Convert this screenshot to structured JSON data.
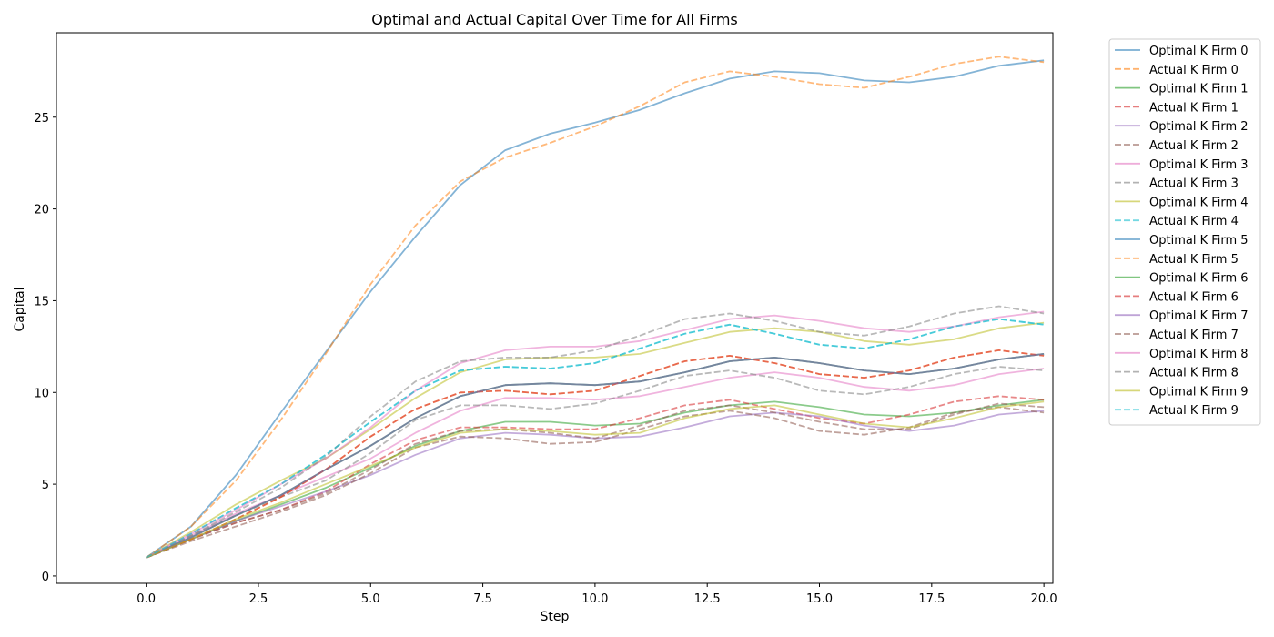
{
  "chart_data": {
    "type": "line",
    "title": "Optimal and Actual Capital Over Time for All Firms",
    "xlabel": "Step",
    "ylabel": "Capital",
    "xlim": [
      -2,
      20.2
    ],
    "ylim": [
      -0.4,
      29.6
    ],
    "xticks": [
      0,
      2.5,
      5,
      7.5,
      10,
      12.5,
      15,
      17.5,
      20
    ],
    "yticks": [
      0,
      5,
      10,
      15,
      20,
      25
    ],
    "xtick_labels": [
      "0.0",
      "2.5",
      "5.0",
      "7.5",
      "10.0",
      "12.5",
      "15.0",
      "17.5",
      "20.0"
    ],
    "ytick_labels": [
      "0",
      "5",
      "10",
      "15",
      "20",
      "25"
    ],
    "grid": false,
    "legend_position": "outside-right",
    "x": [
      0,
      1,
      2,
      3,
      4,
      5,
      6,
      7,
      8,
      9,
      10,
      11,
      12,
      13,
      14,
      15,
      16,
      17,
      18,
      19,
      20
    ],
    "series": [
      {
        "name": "Optimal K Firm 0",
        "color": "#1f77b4",
        "dash": false,
        "values": [
          1.0,
          2.7,
          5.5,
          8.9,
          12.2,
          15.5,
          18.5,
          21.3,
          23.2,
          24.1,
          24.7,
          25.4,
          26.3,
          27.1,
          27.5,
          27.4,
          27.0,
          26.9,
          27.2,
          27.8,
          28.1
        ]
      },
      {
        "name": "Actual K Firm 0",
        "color": "#ff7f0e",
        "dash": true,
        "values": [
          1.0,
          2.7,
          5.2,
          8.5,
          12.1,
          15.9,
          19.1,
          21.5,
          22.8,
          23.6,
          24.5,
          25.6,
          26.9,
          27.5,
          27.2,
          26.8,
          26.6,
          27.2,
          27.9,
          28.3,
          28.0
        ]
      },
      {
        "name": "Optimal K Firm 1",
        "color": "#2ca02c",
        "dash": false,
        "values": [
          1.0,
          2.0,
          3.0,
          3.9,
          4.8,
          5.9,
          7.1,
          7.9,
          8.4,
          8.4,
          8.2,
          8.3,
          8.9,
          9.3,
          9.5,
          9.2,
          8.8,
          8.7,
          8.9,
          9.3,
          9.6
        ]
      },
      {
        "name": "Actual K Firm 1",
        "color": "#d62728",
        "dash": true,
        "values": [
          1.0,
          2.0,
          2.9,
          3.6,
          4.6,
          6.1,
          7.4,
          8.1,
          8.1,
          8.0,
          8.0,
          8.6,
          9.3,
          9.6,
          9.1,
          8.6,
          8.3,
          8.8,
          9.5,
          9.8,
          9.6
        ]
      },
      {
        "name": "Optimal K Firm 2",
        "color": "#9467bd",
        "dash": false,
        "values": [
          1.0,
          2.0,
          3.0,
          3.8,
          4.6,
          5.5,
          6.6,
          7.5,
          7.8,
          7.7,
          7.5,
          7.6,
          8.1,
          8.7,
          8.9,
          8.7,
          8.2,
          7.9,
          8.2,
          8.8,
          9.0
        ]
      },
      {
        "name": "Actual K Firm 2",
        "color": "#8c564b",
        "dash": true,
        "values": [
          1.0,
          2.0,
          2.9,
          3.6,
          4.5,
          5.8,
          7.2,
          7.9,
          8.0,
          7.8,
          7.5,
          8.2,
          9.0,
          9.3,
          8.9,
          8.4,
          8.0,
          8.0,
          8.8,
          9.4,
          9.2
        ]
      },
      {
        "name": "Optimal K Firm 3",
        "color": "#e377c2",
        "dash": false,
        "values": [
          1.0,
          2.2,
          3.4,
          4.4,
          5.4,
          6.4,
          7.8,
          9.0,
          9.7,
          9.7,
          9.6,
          9.8,
          10.3,
          10.8,
          11.1,
          10.8,
          10.3,
          10.1,
          10.4,
          11.0,
          11.3
        ]
      },
      {
        "name": "Actual K Firm 3",
        "color": "#7f7f7f",
        "dash": true,
        "values": [
          1.0,
          2.2,
          3.3,
          4.3,
          5.2,
          6.7,
          8.5,
          9.3,
          9.3,
          9.1,
          9.4,
          10.1,
          10.9,
          11.2,
          10.8,
          10.1,
          9.9,
          10.3,
          11.0,
          11.4,
          11.2
        ]
      },
      {
        "name": "Optimal K Firm 4",
        "color": "#bcbd22",
        "dash": false,
        "values": [
          1.0,
          2.4,
          3.9,
          5.2,
          6.4,
          8.0,
          9.7,
          11.1,
          11.8,
          11.9,
          11.9,
          12.1,
          12.7,
          13.3,
          13.5,
          13.3,
          12.8,
          12.6,
          12.9,
          13.5,
          13.8
        ]
      },
      {
        "name": "Actual K Firm 4",
        "color": "#17becf",
        "dash": true,
        "values": [
          1.0,
          2.3,
          3.7,
          5.0,
          6.6,
          8.4,
          10.1,
          11.2,
          11.4,
          11.3,
          11.6,
          12.4,
          13.2,
          13.7,
          13.2,
          12.6,
          12.4,
          12.9,
          13.6,
          14.0,
          13.7
        ]
      },
      {
        "name": "Optimal K Firm 5",
        "color": "#1f77b4",
        "dash": false,
        "values": [
          1.0,
          2.1,
          3.3,
          4.4,
          5.8,
          7.1,
          8.6,
          9.8,
          10.4,
          10.5,
          10.4,
          10.6,
          11.1,
          11.7,
          11.9,
          11.6,
          11.2,
          11.0,
          11.3,
          11.8,
          12.1
        ]
      },
      {
        "name": "Actual K Firm 5",
        "color": "#ff7f0e",
        "dash": true,
        "values": [
          1.0,
          2.0,
          3.1,
          4.3,
          5.8,
          7.6,
          9.1,
          10.0,
          10.1,
          9.9,
          10.1,
          10.9,
          11.7,
          12.0,
          11.6,
          11.0,
          10.8,
          11.2,
          11.9,
          12.3,
          12.0
        ]
      },
      {
        "name": "Optimal K Firm 6",
        "color": "#2ca02c",
        "dash": false,
        "values": [
          1.0,
          2.1,
          3.3,
          4.4,
          5.8,
          7.1,
          8.6,
          9.8,
          10.4,
          10.5,
          10.4,
          10.6,
          11.1,
          11.7,
          11.9,
          11.6,
          11.2,
          11.0,
          11.3,
          11.8,
          12.1
        ]
      },
      {
        "name": "Actual K Firm 6",
        "color": "#d62728",
        "dash": true,
        "values": [
          1.0,
          2.0,
          3.1,
          4.3,
          5.8,
          7.6,
          9.1,
          10.0,
          10.1,
          9.9,
          10.1,
          10.9,
          11.7,
          12.0,
          11.6,
          11.0,
          10.8,
          11.2,
          11.9,
          12.3,
          12.0
        ]
      },
      {
        "name": "Optimal K Firm 7",
        "color": "#9467bd",
        "dash": false,
        "values": [
          1.0,
          2.1,
          3.3,
          4.4,
          5.8,
          7.1,
          8.6,
          9.8,
          10.4,
          10.5,
          10.4,
          10.6,
          11.1,
          11.7,
          11.9,
          11.6,
          11.2,
          11.0,
          11.3,
          11.8,
          12.1
        ]
      },
      {
        "name": "Actual K Firm 7",
        "color": "#8c564b",
        "dash": true,
        "values": [
          1.0,
          1.9,
          2.7,
          3.5,
          4.4,
          5.6,
          7.0,
          7.6,
          7.5,
          7.2,
          7.3,
          8.0,
          8.7,
          9.0,
          8.6,
          7.9,
          7.7,
          8.1,
          8.9,
          9.2,
          8.9
        ]
      },
      {
        "name": "Optimal K Firm 8",
        "color": "#e377c2",
        "dash": false,
        "values": [
          1.0,
          2.3,
          3.6,
          5.0,
          6.4,
          8.1,
          10.1,
          11.6,
          12.3,
          12.5,
          12.5,
          12.8,
          13.4,
          14.0,
          14.2,
          13.9,
          13.5,
          13.3,
          13.6,
          14.1,
          14.4
        ]
      },
      {
        "name": "Actual K Firm 8",
        "color": "#7f7f7f",
        "dash": true,
        "values": [
          1.0,
          2.2,
          3.5,
          4.8,
          6.5,
          8.7,
          10.6,
          11.7,
          11.9,
          11.9,
          12.3,
          13.1,
          14.0,
          14.3,
          13.9,
          13.3,
          13.1,
          13.6,
          14.3,
          14.7,
          14.3
        ]
      },
      {
        "name": "Optimal K Firm 9",
        "color": "#bcbd22",
        "dash": false,
        "values": [
          1.0,
          2.0,
          3.1,
          4.0,
          5.0,
          6.0,
          7.0,
          7.8,
          8.0,
          7.9,
          7.7,
          7.8,
          8.6,
          9.1,
          9.3,
          8.8,
          8.3,
          8.1,
          8.6,
          9.2,
          9.5
        ]
      },
      {
        "name": "Actual K Firm 9",
        "color": "#17becf",
        "dash": true,
        "values": [
          1.0,
          2.3,
          3.7,
          5.0,
          6.6,
          8.4,
          10.1,
          11.2,
          11.4,
          11.3,
          11.6,
          12.4,
          13.2,
          13.7,
          13.2,
          12.6,
          12.4,
          12.9,
          13.6,
          14.0,
          13.7
        ]
      }
    ]
  }
}
